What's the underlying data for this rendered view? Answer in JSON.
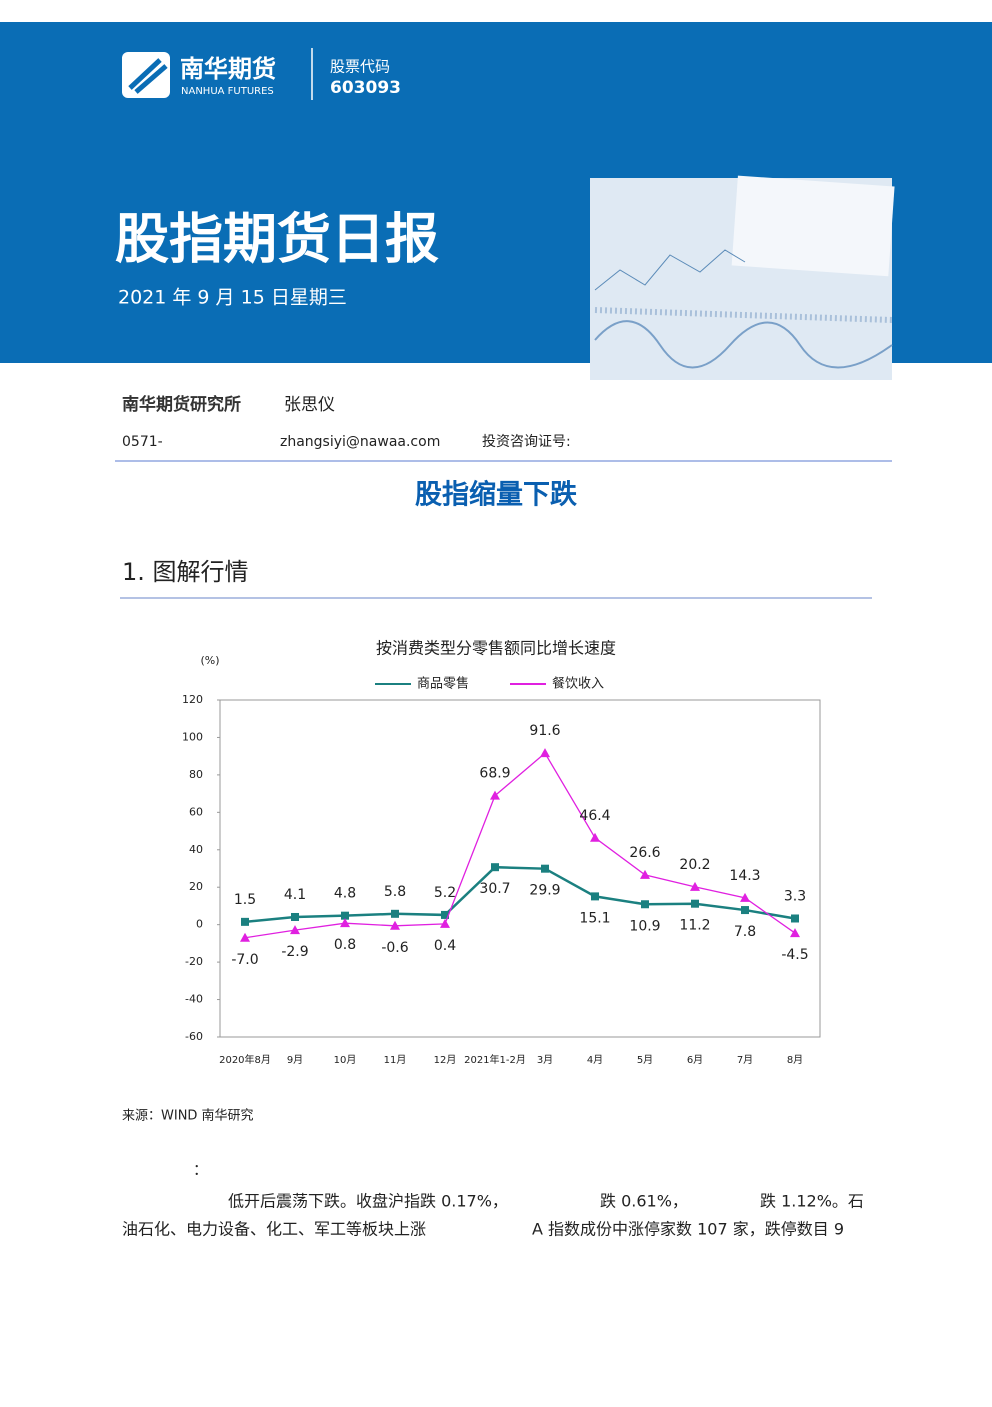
{
  "header": {
    "logo_cn": "南华期货",
    "logo_en": "NANHUA FUTURES",
    "code_label": "股票代码",
    "code": "603093",
    "title": "股指期货日报",
    "date": "2021 年 9 月 15 日星期三"
  },
  "author": {
    "org": "南华期货研究所",
    "name": "张思仪",
    "phone": "0571-",
    "email": "zhangsiyi@nawaa.com",
    "cert": "投资咨询证号:"
  },
  "headline": "股指缩量下跌",
  "section": "1. 图解行情",
  "chart_data": {
    "type": "line",
    "title": "按消费类型分零售额同比增长速度",
    "y_label": "(%)",
    "categories": [
      "2020年8月",
      "9月",
      "10月",
      "11月",
      "12月",
      "2021年1-2月",
      "3月",
      "4月",
      "5月",
      "6月",
      "7月",
      "8月"
    ],
    "series": [
      {
        "name": "商品零售",
        "color": "#1b8080",
        "marker": "square",
        "values": [
          1.5,
          4.1,
          4.8,
          5.8,
          5.2,
          30.7,
          29.9,
          15.1,
          10.9,
          11.2,
          7.8,
          3.3
        ]
      },
      {
        "name": "餐饮收入",
        "color": "#e020e0",
        "marker": "triangle",
        "values": [
          -7.0,
          -2.9,
          0.8,
          -0.6,
          0.4,
          68.9,
          91.6,
          46.4,
          26.6,
          20.2,
          14.3,
          -4.5
        ],
        "value_labels": [
          "-7.0",
          "-2.9",
          "0.8",
          "-0.6",
          "0.4",
          "68.9",
          "91.6",
          "46.4",
          "26.6",
          "20.2",
          "14.3",
          "-4.5"
        ]
      }
    ],
    "ylim": [
      -60,
      120
    ],
    "yticks": [
      -60,
      -40,
      -20,
      0,
      20,
      40,
      60,
      80,
      100,
      120
    ],
    "legend": "top"
  },
  "source": "来源：WIND 南华研究",
  "body": {
    "colon": "：",
    "line1": "低开后震荡下跌。收盘沪指跌 0.17%，",
    "line1b": "跌 0.61%，",
    "line1c": "跌 1.12%。石",
    "line2": "油石化、电力设备、化工、军工等板块上涨",
    "line2b": "A 指数成份中涨停家数 107 家，跌停数目 9"
  }
}
